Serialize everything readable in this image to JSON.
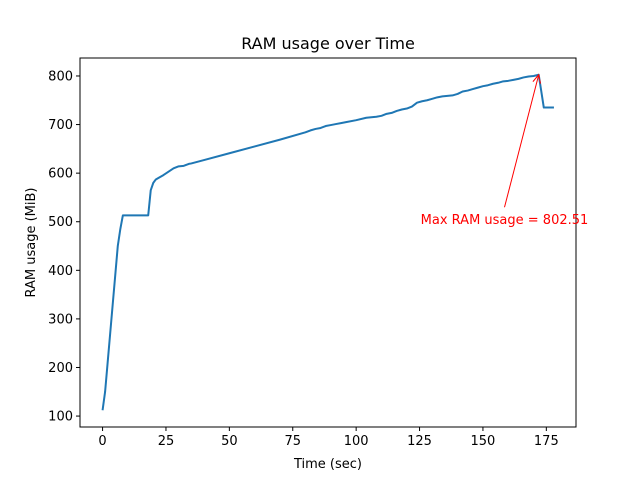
{
  "chart_data": {
    "type": "line",
    "title": "RAM usage over Time",
    "xlabel": "Time (sec)",
    "ylabel": "RAM usage (MiB)",
    "xlim": [
      -8.9,
      186.7
    ],
    "ylim": [
      77.5,
      837.0
    ],
    "xticks": [
      0,
      25,
      50,
      75,
      100,
      125,
      150,
      175
    ],
    "yticks": [
      100,
      200,
      300,
      400,
      500,
      600,
      700,
      800
    ],
    "grid": false,
    "series": [
      {
        "color": "#1f77b4",
        "x": [
          0,
          1,
          2,
          3,
          4,
          5,
          6,
          7,
          8,
          9,
          10,
          12,
          14,
          16,
          18,
          19,
          20,
          21,
          22,
          24,
          26,
          28,
          30,
          32,
          34,
          35,
          40,
          50,
          60,
          70,
          80,
          82,
          84,
          86,
          88,
          90,
          92,
          94,
          96,
          100,
          104,
          106,
          108,
          110,
          112,
          114,
          116,
          118,
          120,
          122,
          124,
          126,
          128,
          130,
          132,
          134,
          136,
          138,
          140,
          142,
          144,
          146,
          148,
          150,
          152,
          154,
          156,
          158,
          160,
          162,
          164,
          166,
          168,
          170,
          172,
          174,
          175,
          178
        ],
        "y": [
          112,
          150,
          210,
          270,
          330,
          390,
          450,
          485,
          513,
          513,
          513,
          513,
          513,
          513,
          513,
          565,
          580,
          587,
          590,
          596,
          603,
          610,
          614,
          615,
          619,
          620,
          627,
          641,
          655,
          669,
          684,
          688,
          691,
          693,
          697,
          699,
          701,
          703,
          705,
          709,
          714,
          715,
          716,
          718,
          722,
          724,
          728,
          731,
          733,
          737,
          745,
          748,
          750,
          753,
          756,
          758,
          759,
          760,
          763,
          768,
          770,
          773,
          776,
          779,
          781,
          784,
          786,
          789,
          790,
          792,
          794,
          797,
          799,
          800,
          802.51,
          735,
          735,
          735
        ]
      }
    ],
    "annotation": {
      "text": "Max RAM usage = 802.51",
      "color": "#ff0000",
      "point": [
        172,
        802.51
      ],
      "text_position": [
        158.5,
        505
      ]
    }
  }
}
